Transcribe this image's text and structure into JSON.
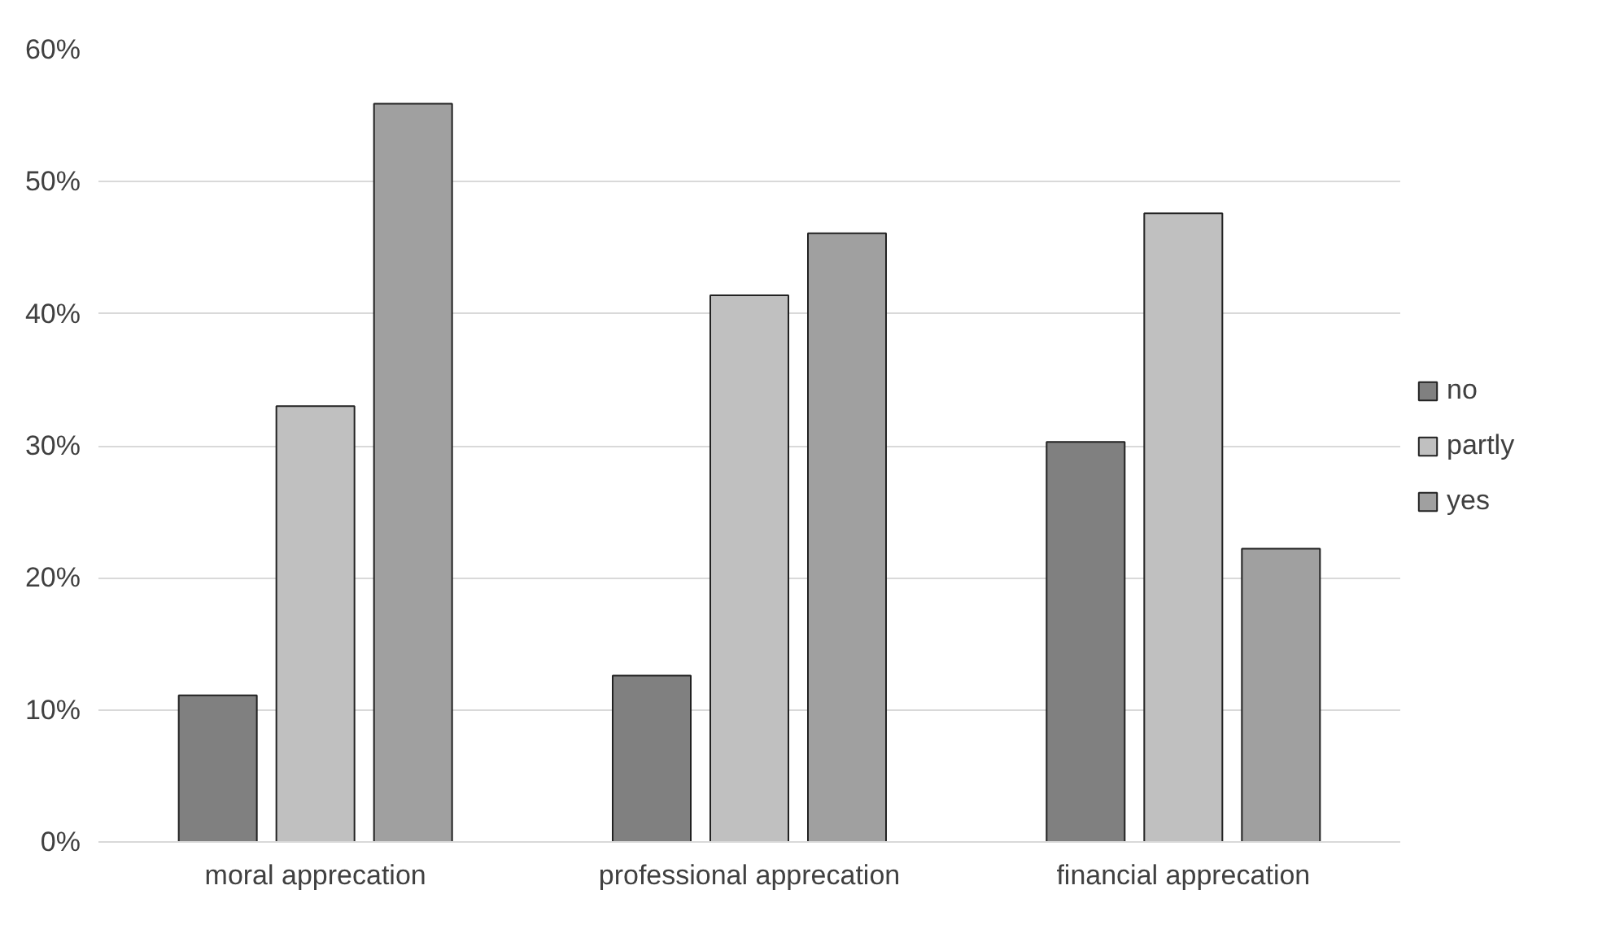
{
  "chart_data": {
    "type": "bar",
    "categories": [
      "moral apprecation",
      "professional apprecation",
      "financial apprecation"
    ],
    "series": [
      {
        "name": "no",
        "color": "#808080",
        "values": [
          11.1,
          12.6,
          30.3
        ]
      },
      {
        "name": "partly",
        "color": "#c0c0c0",
        "values": [
          33.0,
          41.4,
          47.6
        ]
      },
      {
        "name": "yes",
        "color": "#a0a0a0",
        "values": [
          55.9,
          46.1,
          22.2
        ]
      }
    ],
    "ylim": [
      0,
      60
    ],
    "yticks": [
      {
        "value": 0,
        "label": "0%"
      },
      {
        "value": 10,
        "label": "10%"
      },
      {
        "value": 20,
        "label": "20%"
      },
      {
        "value": 30,
        "label": "30%"
      },
      {
        "value": 40,
        "label": "40%"
      },
      {
        "value": 50,
        "label": "50%"
      },
      {
        "value": 60,
        "label": "60%"
      }
    ],
    "grid": "y",
    "legend": "right"
  }
}
